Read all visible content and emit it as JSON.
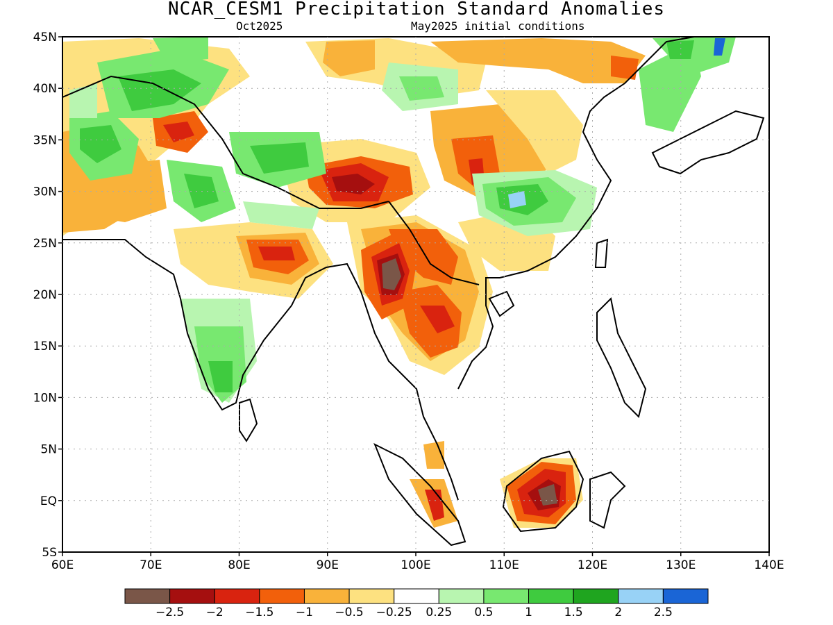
{
  "title": "NCAR_CESM1 Precipitation Standard Anomalies",
  "subtitle_left": "Oct2025",
  "subtitle_right": "May2025 initial conditions",
  "map": {
    "lon_range": [
      60,
      140
    ],
    "lat_range": [
      -5,
      45
    ],
    "x_ticks": [
      "60E",
      "70E",
      "80E",
      "90E",
      "100E",
      "110E",
      "120E",
      "130E",
      "140E"
    ],
    "y_ticks": [
      "5S",
      "EQ",
      "5N",
      "10N",
      "15N",
      "20N",
      "25N",
      "30N",
      "35N",
      "40N",
      "45N"
    ]
  },
  "colorbar": {
    "colors": [
      "#7a5648",
      "#a50f0f",
      "#d9230f",
      "#f2600b",
      "#f9b23a",
      "#fde180",
      "#ffffff",
      "#b8f5b0",
      "#78e870",
      "#3fcb3f",
      "#1fa51f",
      "#98d2f6",
      "#1a65d6"
    ],
    "labels": [
      "−2.5",
      "−2",
      "−1.5",
      "−1",
      "−0.5",
      "−0.25",
      "0.25",
      "0.5",
      "1",
      "1.5",
      "2",
      "2.5"
    ]
  },
  "chart_data": {
    "type": "heatmap",
    "title": "NCAR_CESM1 Precipitation Standard Anomalies",
    "subtitle": [
      "Oct2025",
      "May2025 initial conditions"
    ],
    "x_range": [
      60,
      140
    ],
    "y_range": [
      -5,
      45
    ],
    "levels": [
      -2.5,
      -2,
      -1.5,
      -1,
      -0.5,
      -0.25,
      0.25,
      0.5,
      1,
      1.5,
      2,
      2.5
    ],
    "grid": true,
    "anomaly_regions": [
      {
        "lon": 97,
        "lat": 22,
        "level": -2.5
      },
      {
        "lon": 114,
        "lat": 0.5,
        "level": -2.5
      },
      {
        "lon": 92,
        "lat": 31,
        "level": -2
      },
      {
        "lon": 85,
        "lat": 24,
        "level": -2
      },
      {
        "lon": 102,
        "lat": 18,
        "level": -1.5
      },
      {
        "lon": 107,
        "lat": 31.5,
        "level": -1.5
      },
      {
        "lon": 74,
        "lat": 36,
        "level": -1.5
      },
      {
        "lon": 113,
        "lat": 29.5,
        "level": 2.5
      },
      {
        "lon": 65,
        "lat": 34,
        "level": 1.5
      },
      {
        "lon": 75,
        "lat": 40,
        "level": 1.5
      },
      {
        "lon": 89,
        "lat": 33,
        "level": 1.5
      },
      {
        "lon": 78,
        "lat": 12,
        "level": 1.5
      }
    ]
  }
}
